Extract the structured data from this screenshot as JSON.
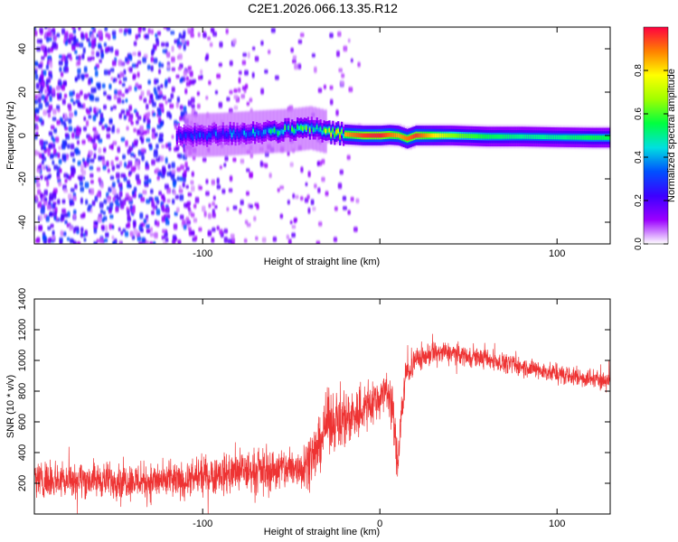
{
  "chart_data": [
    {
      "type": "heatmap",
      "title": "C2E1.2026.066.13.35.R12",
      "xlabel": "Height of straight line (km)",
      "ylabel": "Frequency (Hz)",
      "xlim": [
        -195,
        130
      ],
      "ylim": [
        -50,
        50
      ],
      "xticks": [
        -100,
        0,
        100
      ],
      "xtick_labels": [
        "-100",
        "",
        "100"
      ],
      "yticks": [
        -40,
        -20,
        0,
        20,
        40
      ],
      "ytick_labels": [
        "-40",
        "-20",
        "0",
        "20",
        "40"
      ],
      "colorbar": {
        "label": "Normalized spectral amplitude",
        "range": [
          0,
          1
        ],
        "ticks": [
          0,
          0.2,
          0.4,
          0.6,
          0.8
        ],
        "tick_labels": [
          "0.0",
          "0.2",
          "0.4",
          "0.6",
          "0.8"
        ],
        "colors": [
          "#ffffff",
          "#9b00ff",
          "#3c00ff",
          "#0050ff",
          "#00e0e0",
          "#00ff40",
          "#a0ff00",
          "#ffff00",
          "#ff8000",
          "#ff0040"
        ]
      },
      "ridge": {
        "description": "dominant frequency vs height",
        "x": [
          -110,
          -90,
          -70,
          -50,
          -40,
          -30,
          -20,
          -10,
          0,
          5,
          10,
          15,
          20,
          40,
          60,
          80,
          100,
          120,
          130
        ],
        "y": [
          0,
          0.5,
          1.5,
          2.5,
          3.5,
          1.5,
          0.5,
          0,
          0,
          0.3,
          0,
          -1.5,
          0,
          0,
          -0.5,
          -0.5,
          -0.8,
          -1,
          -1
        ],
        "amplitude": [
          0.3,
          0.35,
          0.45,
          0.55,
          0.6,
          0.7,
          0.85,
          0.95,
          0.98,
          0.9,
          0.85,
          0.9,
          0.95,
          0.65,
          0.55,
          0.5,
          0.5,
          0.55,
          0.55
        ]
      },
      "noise_region_x": [
        -195,
        -30
      ]
    },
    {
      "type": "line",
      "title": "",
      "xlabel": "Height of straight line (km)",
      "ylabel": "SNR (10 * v/v)",
      "xlim": [
        -195,
        130
      ],
      "ylim": [
        0,
        1400
      ],
      "xticks": [
        -100,
        0,
        100
      ],
      "xtick_labels": [
        "-100",
        "0",
        "100"
      ],
      "yticks": [
        200,
        400,
        600,
        800,
        1000,
        1200,
        1400
      ],
      "ytick_labels": [
        "200",
        "400",
        "600",
        "800",
        "1000",
        "1200",
        "1400"
      ],
      "color": "#ee3333",
      "envelope": {
        "x": [
          -195,
          -150,
          -110,
          -100,
          -80,
          -60,
          -45,
          -35,
          -30,
          -20,
          -10,
          0,
          5,
          8,
          10,
          12,
          15,
          20,
          30,
          40,
          60,
          80,
          100,
          120,
          130
        ],
        "mean": [
          230,
          220,
          210,
          250,
          270,
          290,
          300,
          420,
          600,
          620,
          680,
          760,
          820,
          600,
          300,
          650,
          920,
          1000,
          1050,
          1050,
          1010,
          960,
          910,
          880,
          870
        ],
        "spread": [
          170,
          170,
          170,
          180,
          200,
          200,
          220,
          260,
          280,
          280,
          240,
          200,
          180,
          300,
          180,
          200,
          150,
          120,
          110,
          100,
          90,
          90,
          90,
          90,
          90
        ]
      }
    }
  ]
}
